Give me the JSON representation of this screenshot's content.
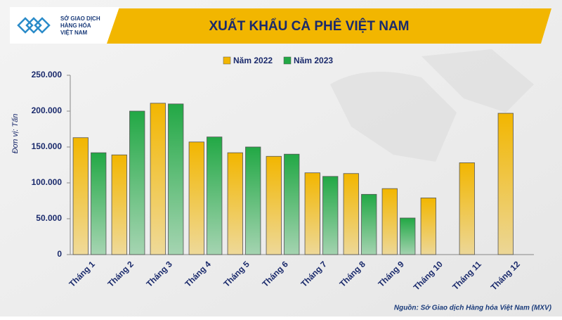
{
  "logo": {
    "lines": [
      "SỞ GIAO DỊCH",
      "HÀNG HÓA",
      "VIỆT NAM"
    ]
  },
  "chart_data": {
    "type": "bar",
    "title": "XUẤT KHẨU CÀ PHÊ VIỆT NAM",
    "y_label": "Đơn vị: Tấn",
    "source": "Nguồn: Sở Giao dịch Hàng hóa Việt Nam (MXV)",
    "categories": [
      "Tháng 1",
      "Tháng 2",
      "Tháng 3",
      "Tháng 4",
      "Tháng 5",
      "Tháng 6",
      "Tháng 7",
      "Tháng 8",
      "Tháng 9",
      "Tháng 10",
      "Tháng 11",
      "Tháng 12"
    ],
    "series": [
      {
        "name": "Năm 2022",
        "color": "#f2b600",
        "values": [
          163000,
          139000,
          211000,
          157000,
          142000,
          137000,
          114000,
          113000,
          92000,
          79000,
          128000,
          197000
        ]
      },
      {
        "name": "Năm 2023",
        "color": "#22a845",
        "values": [
          142000,
          200000,
          210000,
          164000,
          150000,
          140000,
          109000,
          84000,
          51000,
          null,
          null,
          null
        ]
      }
    ],
    "ylim": [
      0,
      250000
    ],
    "yticks": [
      0,
      {
        "value": 50000,
        "label": "50.000"
      },
      {
        "value": 100000,
        "label": "100.000"
      },
      {
        "value": 150000,
        "label": "150.000"
      },
      {
        "value": 200000,
        "label": "200.000"
      },
      {
        "value": 250000,
        "label": "250.000"
      }
    ],
    "grid": false
  }
}
